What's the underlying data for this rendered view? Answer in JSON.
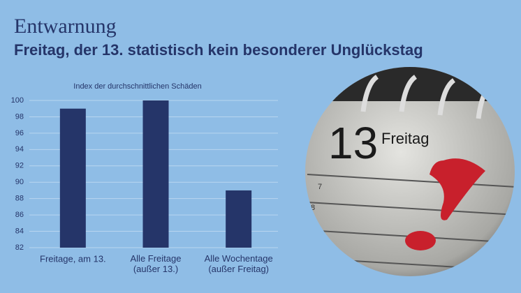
{
  "chart_data": {
    "type": "bar",
    "title": "Entwarnung",
    "subtitle": "Freitag, der 13. statistisch kein besonderer Unglückstag",
    "y_label": "Index der durchschnittlichen Schäden",
    "categories": [
      "Freitage, am 13.",
      "Alle Freitage (außer 13.)",
      "Alle Wochentage (außer Freitag)"
    ],
    "values": [
      99,
      100,
      89
    ],
    "color": "#253569",
    "ylim": [
      82,
      100
    ],
    "yticks": [
      82,
      84,
      86,
      88,
      90,
      92,
      94,
      96,
      98,
      100
    ],
    "grid": true
  },
  "photo": {
    "day": "13",
    "weekday": "Freitag",
    "row_numbers": [
      "7",
      "8"
    ]
  }
}
